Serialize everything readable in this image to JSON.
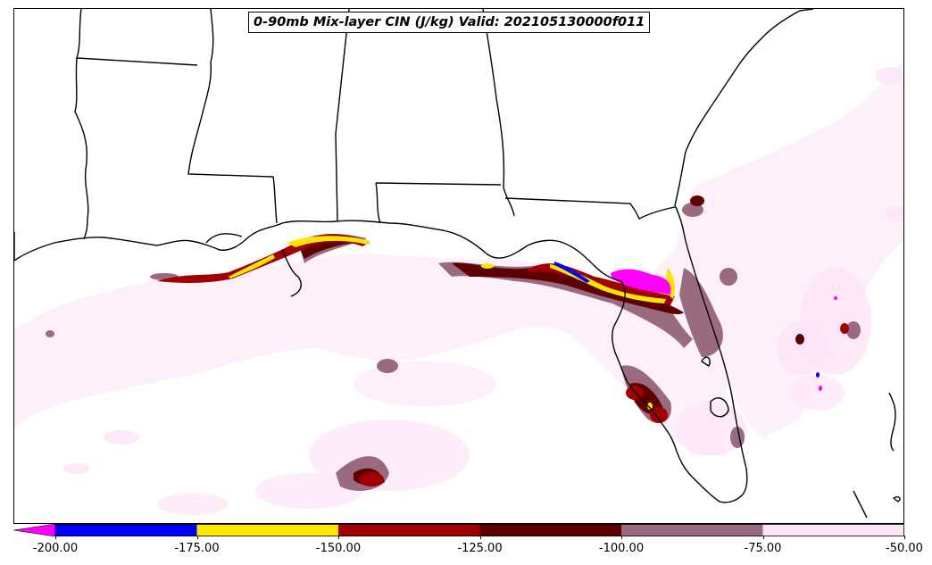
{
  "title": "0-90mb Mix-layer CIN (J/kg) Valid: 202105130000f011",
  "colorbar": {
    "extend": "min",
    "extend_color": "#ff00ff",
    "bins": [
      {
        "from": -200,
        "to": -175,
        "color": "#0000ff"
      },
      {
        "from": -175,
        "to": -150,
        "color": "#ffe600"
      },
      {
        "from": -150,
        "to": -125,
        "color": "#a00000"
      },
      {
        "from": -125,
        "to": -100,
        "color": "#5c0000"
      },
      {
        "from": -100,
        "to": -75,
        "color": "#9a6a80"
      },
      {
        "from": -75,
        "to": -50,
        "color": "#fde4f8"
      }
    ],
    "tick_labels": [
      "-200.00",
      "-175.00",
      "-150.00",
      "-125.00",
      "-100.00",
      "-75.00",
      "-50.00"
    ]
  },
  "colors": {
    "coast": "#000000",
    "background": "#ffffff"
  }
}
